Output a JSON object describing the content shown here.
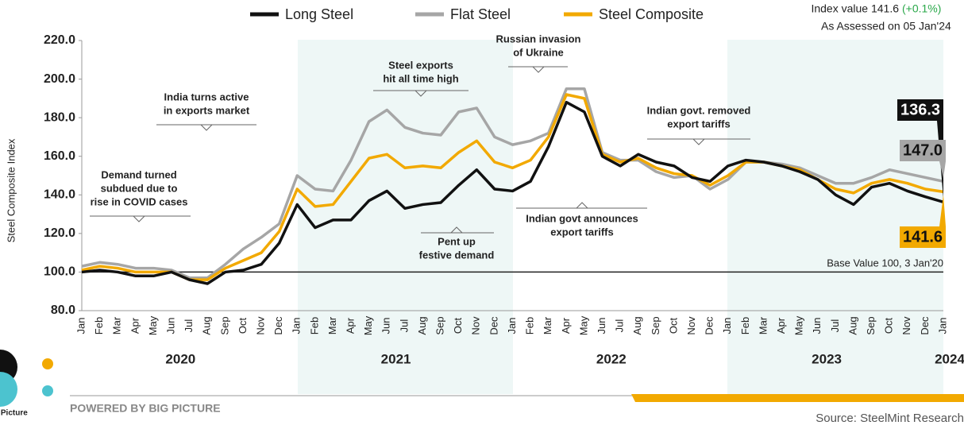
{
  "chart_data": {
    "type": "line",
    "y_label": "Steel Composite Index",
    "index_note": "Index value 141.6",
    "index_change": "(+0.1%)",
    "assessed": "As Assessed on 05 Jan'24",
    "base_label": "Base Value 100, 3 Jan'20",
    "base_line": 100,
    "powered_by": "POWERED BY BIG PICTURE",
    "source": "Source: SteelMint Research",
    "logo_text": "Big Picture",
    "categories": [
      "Jan",
      "Feb",
      "Mar",
      "Apr",
      "May",
      "Jun",
      "Jul",
      "Aug",
      "Sep",
      "Oct",
      "Nov",
      "Dec",
      "Jan",
      "Feb",
      "Mar",
      "Apr",
      "May",
      "Jun",
      "Jul",
      "Aug",
      "Sep",
      "Oct",
      "Nov",
      "Dec",
      "Jan",
      "Feb",
      "Mar",
      "Apr",
      "May",
      "Jun",
      "Jul",
      "Aug",
      "Sep",
      "Oct",
      "Nov",
      "Dec",
      "Jan",
      "Feb",
      "Mar",
      "Apr",
      "May",
      "Jun",
      "Jul",
      "Aug",
      "Sep",
      "Oct",
      "Nov",
      "Dec",
      "Jan"
    ],
    "years": [
      "2020",
      "2021",
      "2022",
      "2023",
      "2024"
    ],
    "series": [
      {
        "name": "Long Steel",
        "color": "#111111",
        "end_label": "136.3",
        "values": [
          100,
          101,
          100,
          98,
          98,
          100,
          96,
          94,
          100,
          101,
          104,
          115,
          135,
          123,
          127,
          127,
          137,
          142,
          133,
          135,
          136,
          145,
          153,
          143,
          142,
          147,
          165,
          188,
          183,
          160,
          155,
          161,
          157,
          155,
          149,
          147,
          155,
          158,
          157,
          155,
          152,
          148,
          140,
          135,
          144,
          146,
          142,
          139,
          136.3
        ]
      },
      {
        "name": "Flat Steel",
        "color": "#a6a6a6",
        "end_label": "147.0",
        "values": [
          103,
          105,
          104,
          102,
          102,
          101,
          97,
          97,
          104,
          112,
          118,
          125,
          150,
          143,
          142,
          158,
          178,
          184,
          175,
          172,
          171,
          183,
          185,
          170,
          166,
          168,
          172,
          195,
          195,
          162,
          158,
          158,
          152,
          149,
          150,
          143,
          148,
          157,
          157,
          156,
          154,
          150,
          146,
          146,
          149,
          153,
          151,
          149,
          147
        ]
      },
      {
        "name": "Steel Composite",
        "color": "#f2a900",
        "end_label": "141.6",
        "values": [
          101,
          103,
          102,
          100,
          100,
          100,
          96,
          96,
          102,
          106,
          110,
          121,
          143,
          134,
          135,
          147,
          159,
          161,
          154,
          155,
          154,
          162,
          168,
          157,
          154,
          158,
          170,
          192,
          190,
          161,
          157,
          159,
          154,
          151,
          150,
          145,
          150,
          157,
          157,
          155,
          153,
          148,
          143,
          141,
          146,
          148,
          146,
          143,
          141.6
        ]
      }
    ],
    "annotations": [
      {
        "lines": [
          "India turns active",
          "in exports market"
        ]
      },
      {
        "lines": [
          "Demand turned",
          "subdued due to",
          "rise in COVID cases"
        ]
      },
      {
        "lines": [
          "Steel exports",
          "hit all time high"
        ]
      },
      {
        "lines": [
          "Russian invasion",
          "of Ukraine"
        ]
      },
      {
        "lines": [
          "Indian govt. removed",
          "export tariffs"
        ]
      },
      {
        "lines": [
          "Pent up",
          "festive demand"
        ]
      },
      {
        "lines": [
          "Indian govt announces",
          "export tariffs"
        ]
      }
    ],
    "ylim": [
      80,
      220
    ],
    "yticks": [
      {
        "value": 80,
        "label": "80.0"
      },
      {
        "value": 100,
        "label": "100.0"
      },
      {
        "value": 120,
        "label": "120.0"
      },
      {
        "value": 140,
        "label": "140.0"
      },
      {
        "value": 160,
        "label": "160.0"
      },
      {
        "value": 180,
        "label": "180.0"
      },
      {
        "value": 200,
        "label": "200.0"
      },
      {
        "value": 220,
        "label": "220.0"
      }
    ]
  }
}
